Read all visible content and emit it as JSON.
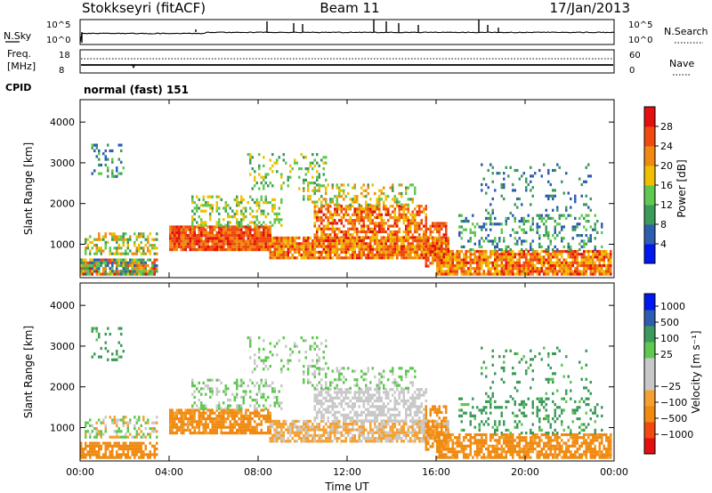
{
  "header": {
    "station": "Stokkseyri (fitACF)",
    "beam": "Beam 11",
    "date": "17/Jan/2013"
  },
  "sky_panel": {
    "left_label": "N.Sky",
    "right_label": "N.Search",
    "y_ticks": [
      "10^5",
      "10^0"
    ]
  },
  "freq_panel": {
    "left_label_line1": "Freq.",
    "left_label_line2": "[MHz]",
    "left_ticks": [
      "18",
      "8"
    ],
    "right_ticks": [
      "60",
      "0"
    ],
    "right_label": "Nave"
  },
  "cpid": {
    "label": "CPID",
    "mode": "normal (fast) 151"
  },
  "colors": {
    "power_scale": [
      "#0018f0",
      "#2d5eb0",
      "#3c9a5a",
      "#5ec850",
      "#f0c000",
      "#f08a10",
      "#f04a10",
      "#e41010"
    ],
    "velocity_scale": [
      "#e41010",
      "#f04a10",
      "#f08a10",
      "#f5a030",
      "#c8c8c8",
      "#c8c8c8",
      "#5ec850",
      "#3c9a5a",
      "#2d5eb0",
      "#0018f0"
    ]
  },
  "chart_data": [
    {
      "type": "heatmap",
      "name": "power",
      "ylabel": "Slant Range [km]",
      "y_ticks": [
        "1000",
        "2000",
        "3000",
        "4000"
      ],
      "ylim": [
        180,
        4550
      ],
      "colorbar_label": "Power [dB]",
      "colorbar_ticks": [
        "4",
        "8",
        "12",
        "16",
        "20",
        "24",
        "28"
      ],
      "crange": [
        0,
        32
      ]
    },
    {
      "type": "heatmap",
      "name": "velocity",
      "ylabel": "Slant Range [km]",
      "y_ticks": [
        "1000",
        "2000",
        "3000",
        "4000"
      ],
      "ylim": [
        180,
        4550
      ],
      "colorbar_label": "Velocity [m s⁻¹]",
      "colorbar_ticks": [
        "1000",
        "500",
        "100",
        "25",
        "−25",
        "−100",
        "−500",
        "−1000"
      ],
      "crange": [
        -1000,
        1000
      ]
    }
  ],
  "time_axis": {
    "xlabel": "Time UT",
    "ticks": [
      "00:00",
      "04:00",
      "08:00",
      "12:00",
      "16:00",
      "20:00",
      "00:00"
    ],
    "xlim": [
      0,
      24
    ]
  }
}
